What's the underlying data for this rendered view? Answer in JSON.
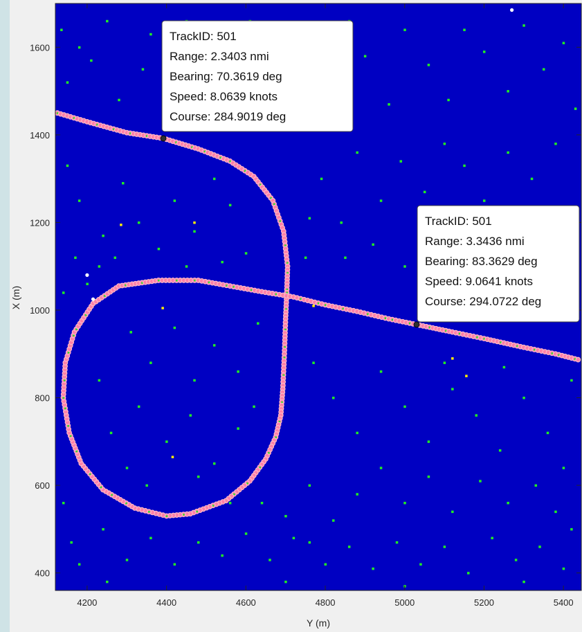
{
  "chart_data": {
    "type": "scatter",
    "xlabel": "Y (m)",
    "ylabel": "X (m)",
    "xlim": [
      4120,
      5445
    ],
    "ylim": [
      360,
      1700
    ],
    "xticks": [
      4200,
      4400,
      4600,
      4800,
      5000,
      5200,
      5400
    ],
    "yticks": [
      400,
      600,
      800,
      1000,
      1200,
      1400,
      1600
    ],
    "colors": {
      "background": "#0000c2",
      "detections": "#22ee22",
      "track_marker": "#ffb8c8",
      "track_fill": "#ff80a8",
      "datatip_point": "#303030",
      "secondary_detections": "#ffee00",
      "reference_points": "#ffffff"
    },
    "series": [
      {
        "name": "",
        "kind": "track",
        "points": [
          [
            4125,
            1450
          ],
          [
            4200,
            1430
          ],
          [
            4300,
            1405
          ],
          [
            4392,
            1392
          ],
          [
            4480,
            1368
          ],
          [
            4560,
            1340
          ],
          [
            4620,
            1305
          ],
          [
            4668,
            1250
          ],
          [
            4695,
            1180
          ],
          [
            4705,
            1100
          ],
          [
            4703,
            1040
          ],
          [
            4700,
            980
          ],
          [
            4697,
            900
          ],
          [
            4693,
            820
          ],
          [
            4688,
            760
          ],
          [
            4675,
            710
          ],
          [
            4650,
            660
          ],
          [
            4610,
            610
          ],
          [
            4550,
            565
          ],
          [
            4460,
            535
          ],
          [
            4400,
            530
          ],
          [
            4320,
            548
          ],
          [
            4240,
            590
          ],
          [
            4185,
            650
          ],
          [
            4155,
            720
          ],
          [
            4140,
            800
          ],
          [
            4145,
            880
          ],
          [
            4168,
            950
          ],
          [
            4215,
            1015
          ],
          [
            4280,
            1055
          ],
          [
            4380,
            1068
          ],
          [
            4480,
            1068
          ],
          [
            4560,
            1055
          ],
          [
            4640,
            1042
          ],
          [
            4720,
            1030
          ],
          [
            4800,
            1012
          ],
          [
            4880,
            997
          ],
          [
            4960,
            980
          ],
          [
            5030,
            967
          ],
          [
            5120,
            950
          ],
          [
            5200,
            935
          ],
          [
            5300,
            915
          ],
          [
            5380,
            900
          ],
          [
            5445,
            885
          ]
        ]
      },
      {
        "name": "",
        "kind": "detections",
        "points": [
          [
            4135,
            1640
          ],
          [
            4150,
            1520
          ],
          [
            4180,
            1600
          ],
          [
            4210,
            1570
          ],
          [
            4250,
            1660
          ],
          [
            4280,
            1480
          ],
          [
            4340,
            1550
          ],
          [
            4360,
            1630
          ],
          [
            4420,
            1500
          ],
          [
            4450,
            1660
          ],
          [
            4530,
            1600
          ],
          [
            4560,
            1450
          ],
          [
            4610,
            1660
          ],
          [
            4650,
            1530
          ],
          [
            4690,
            1610
          ],
          [
            4740,
            1450
          ],
          [
            4780,
            1630
          ],
          [
            4800,
            1540
          ],
          [
            4860,
            1660
          ],
          [
            4900,
            1580
          ],
          [
            4960,
            1470
          ],
          [
            5000,
            1640
          ],
          [
            5060,
            1560
          ],
          [
            5110,
            1480
          ],
          [
            5150,
            1640
          ],
          [
            5200,
            1590
          ],
          [
            5260,
            1500
          ],
          [
            5300,
            1650
          ],
          [
            5350,
            1550
          ],
          [
            5400,
            1610
          ],
          [
            5430,
            1460
          ],
          [
            5380,
            1380
          ],
          [
            5320,
            1300
          ],
          [
            5260,
            1360
          ],
          [
            5200,
            1250
          ],
          [
            5150,
            1330
          ],
          [
            5100,
            1380
          ],
          [
            5050,
            1270
          ],
          [
            4990,
            1340
          ],
          [
            4940,
            1250
          ],
          [
            4880,
            1360
          ],
          [
            4840,
            1200
          ],
          [
            4790,
            1300
          ],
          [
            4750,
            1120
          ],
          [
            4760,
            1210
          ],
          [
            4560,
            1240
          ],
          [
            4520,
            1300
          ],
          [
            4470,
            1180
          ],
          [
            4420,
            1250
          ],
          [
            4380,
            1140
          ],
          [
            4330,
            1200
          ],
          [
            4290,
            1290
          ],
          [
            4240,
            1170
          ],
          [
            4180,
            1250
          ],
          [
            4150,
            1330
          ],
          [
            4170,
            1120
          ],
          [
            4230,
            1100
          ],
          [
            4140,
            1040
          ],
          [
            4310,
            950
          ],
          [
            4360,
            880
          ],
          [
            4420,
            960
          ],
          [
            4470,
            840
          ],
          [
            4520,
            920
          ],
          [
            4580,
            860
          ],
          [
            4630,
            970
          ],
          [
            4330,
            780
          ],
          [
            4400,
            700
          ],
          [
            4460,
            760
          ],
          [
            4520,
            650
          ],
          [
            4580,
            730
          ],
          [
            4300,
            640
          ],
          [
            4260,
            720
          ],
          [
            4230,
            840
          ],
          [
            4350,
            600
          ],
          [
            4480,
            620
          ],
          [
            4770,
            880
          ],
          [
            4820,
            800
          ],
          [
            4880,
            720
          ],
          [
            4940,
            860
          ],
          [
            5000,
            780
          ],
          [
            5060,
            700
          ],
          [
            5120,
            820
          ],
          [
            5180,
            760
          ],
          [
            5240,
            680
          ],
          [
            5300,
            800
          ],
          [
            5360,
            720
          ],
          [
            5420,
            840
          ],
          [
            5400,
            640
          ],
          [
            5330,
            600
          ],
          [
            5260,
            560
          ],
          [
            5190,
            610
          ],
          [
            5120,
            540
          ],
          [
            5060,
            620
          ],
          [
            5000,
            560
          ],
          [
            4940,
            640
          ],
          [
            4880,
            580
          ],
          [
            4820,
            520
          ],
          [
            4760,
            600
          ],
          [
            4720,
            480
          ],
          [
            4660,
            430
          ],
          [
            4600,
            490
          ],
          [
            4540,
            440
          ],
          [
            4480,
            470
          ],
          [
            4420,
            420
          ],
          [
            4360,
            480
          ],
          [
            4300,
            430
          ],
          [
            4240,
            500
          ],
          [
            4180,
            420
          ],
          [
            4140,
            560
          ],
          [
            4160,
            470
          ],
          [
            4800,
            420
          ],
          [
            4860,
            460
          ],
          [
            4920,
            410
          ],
          [
            4980,
            470
          ],
          [
            5040,
            420
          ],
          [
            5100,
            460
          ],
          [
            5160,
            400
          ],
          [
            5220,
            480
          ],
          [
            5280,
            430
          ],
          [
            5340,
            460
          ],
          [
            5400,
            410
          ],
          [
            5420,
            500
          ],
          [
            5380,
            540
          ],
          [
            4700,
            380
          ],
          [
            5000,
            370
          ],
          [
            5300,
            380
          ],
          [
            4250,
            380
          ],
          [
            4850,
            1120
          ],
          [
            4920,
            1150
          ],
          [
            5000,
            1100
          ],
          [
            5080,
            1150
          ],
          [
            5150,
            1080
          ],
          [
            5230,
            1130
          ],
          [
            5300,
            1060
          ],
          [
            5380,
            1110
          ],
          [
            5420,
            1000
          ],
          [
            5350,
            980
          ],
          [
            5180,
            1020
          ],
          [
            5100,
            880
          ],
          [
            5250,
            870
          ],
          [
            4600,
            1130
          ],
          [
            4540,
            1110
          ],
          [
            4450,
            1100
          ],
          [
            4270,
            1120
          ],
          [
            4200,
            1060
          ],
          [
            4620,
            780
          ],
          [
            4560,
            560
          ],
          [
            4640,
            560
          ],
          [
            4700,
            530
          ],
          [
            4760,
            470
          ]
        ]
      },
      {
        "name": "",
        "kind": "secondary",
        "points": [
          [
            4285,
            1195
          ],
          [
            4390,
            1005
          ],
          [
            4415,
            665
          ],
          [
            4770,
            1010
          ],
          [
            5120,
            890
          ],
          [
            5155,
            850
          ],
          [
            4470,
            1200
          ]
        ]
      },
      {
        "name": "",
        "kind": "reference",
        "points": [
          [
            5270,
            1685
          ],
          [
            4200,
            1080
          ],
          [
            4215,
            1025
          ]
        ]
      }
    ],
    "datatips": [
      {
        "point": [
          4392,
          1392
        ],
        "lines": [
          "TrackID: 501",
          "Range: 2.3403 nmi",
          "Bearing: 70.3619 deg",
          "Speed: 8.0639 knots",
          "Course: 284.9019 deg"
        ]
      },
      {
        "point": [
          5030,
          967
        ],
        "lines": [
          "TrackID: 501",
          "Range: 3.3436 nmi",
          "Bearing: 83.3629 deg",
          "Speed: 9.0641 knots",
          "Course: 294.0722 deg"
        ]
      }
    ]
  }
}
